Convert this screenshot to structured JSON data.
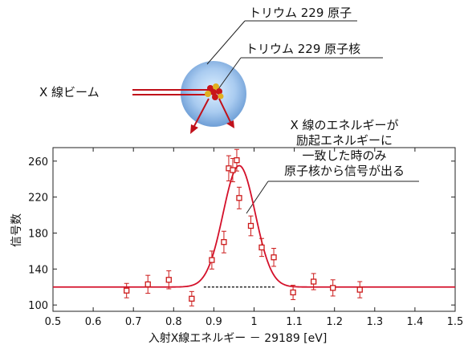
{
  "diagram": {
    "label_atom": "トリウム 229 原子",
    "label_nucleus": "トリウム 229 原子核",
    "label_beam": "X 線ビーム",
    "annotation_lines": [
      "X 線のエネルギーが",
      "励起エネルギーに",
      "一致した時のみ",
      "原子核から信号が出る"
    ],
    "colors": {
      "beam": "#c0101a",
      "nucleus": "#cc1a1a",
      "atom_outer": "#7aa6d8",
      "atom_inner": "#d8ecfa"
    }
  },
  "chart_data": {
    "type": "scatter",
    "title": "",
    "xlabel": "入射X線エネルギー － 29189 [eV]",
    "ylabel": "信号数",
    "xlim": [
      0.5,
      1.5
    ],
    "ylim": [
      93,
      275
    ],
    "xticks": [
      0.5,
      0.6,
      0.7,
      0.8,
      0.9,
      1.0,
      1.1,
      1.2,
      1.3,
      1.4,
      1.5
    ],
    "xtick_labels": [
      "0.5",
      "0.6",
      "0.7",
      "0.8",
      "0.9",
      "1",
      "1.1",
      "1.2",
      "1.3",
      "1.4",
      "1.5"
    ],
    "yticks": [
      100,
      140,
      180,
      220,
      260
    ],
    "ytick_labels": [
      "100",
      "140",
      "180",
      "220",
      "260"
    ],
    "grid": false,
    "points": [
      {
        "x": 0.683,
        "y": 116,
        "err": 8
      },
      {
        "x": 0.736,
        "y": 123,
        "err": 10
      },
      {
        "x": 0.788,
        "y": 128,
        "err": 10
      },
      {
        "x": 0.845,
        "y": 107,
        "err": 8
      },
      {
        "x": 0.895,
        "y": 150,
        "err": 10
      },
      {
        "x": 0.925,
        "y": 170,
        "err": 12
      },
      {
        "x": 0.937,
        "y": 252,
        "err": 14
      },
      {
        "x": 0.947,
        "y": 250,
        "err": 13
      },
      {
        "x": 0.957,
        "y": 261,
        "err": 12
      },
      {
        "x": 0.963,
        "y": 219,
        "err": 12
      },
      {
        "x": 0.992,
        "y": 188,
        "err": 11
      },
      {
        "x": 1.019,
        "y": 164,
        "err": 10
      },
      {
        "x": 1.049,
        "y": 153,
        "err": 10
      },
      {
        "x": 1.097,
        "y": 114,
        "err": 8
      },
      {
        "x": 1.148,
        "y": 126,
        "err": 9
      },
      {
        "x": 1.196,
        "y": 119,
        "err": 9
      },
      {
        "x": 1.263,
        "y": 117,
        "err": 9
      }
    ],
    "fit": {
      "type": "gaussian",
      "baseline": 120,
      "amplitude": 135,
      "center": 0.963,
      "sigma": 0.04
    },
    "colors": {
      "points": "#cc1a1a",
      "fit": "#d4102a",
      "baseline": "#000000"
    }
  }
}
